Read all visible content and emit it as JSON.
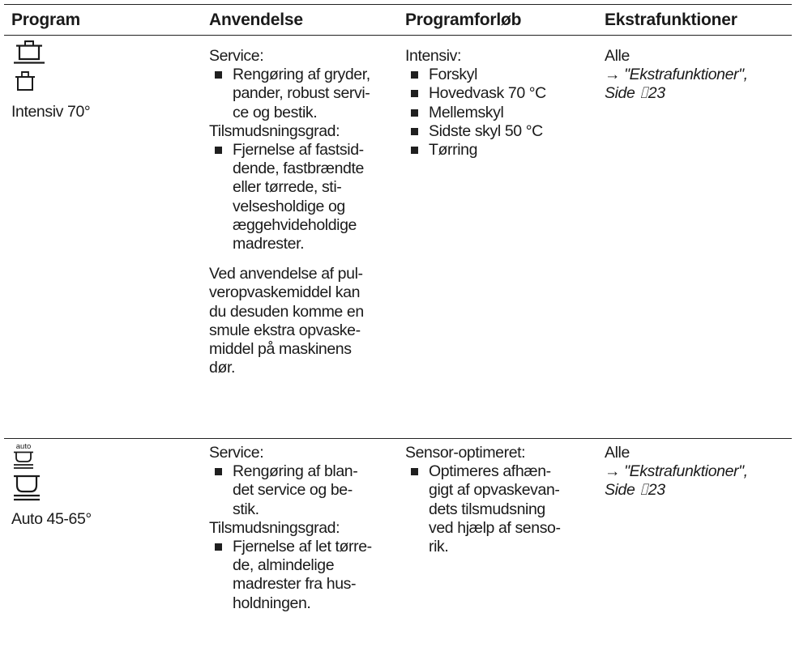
{
  "table": {
    "headers": {
      "program": "Program",
      "anvendelse": "Anvendelse",
      "programforlob": "Programforløb",
      "ekstra": "Ekstrafunktioner"
    },
    "rows": [
      {
        "program_name": "Intensiv 70°",
        "icons": [
          "pot-large-icon",
          "pot-small-icon"
        ],
        "anvendelse": {
          "heading1": "Service:",
          "bullet1": [
            "Rengøring af gryder,",
            "pander, robust servi-",
            "ce og bestik."
          ],
          "heading2": "Tilsmudsningsgrad:",
          "bullet2": [
            "Fjernelse af fastsid-",
            "dende, fastbrændte",
            "eller tørrede, sti-",
            "velsesholdige og",
            "æggehvideholdige",
            "madrester."
          ],
          "note": [
            "Ved anvendelse af pul-",
            "veropvaskemiddel kan",
            "du desuden komme en",
            "smule ekstra opvaske-",
            "middel på maskinens",
            "dør."
          ]
        },
        "programforlob": {
          "heading": "Intensiv:",
          "bullets": [
            "Forskyl",
            "Hovedvask 70 °C",
            "Mellemskyl",
            "Sidste skyl 50 °C",
            "Tørring"
          ]
        },
        "ekstra": {
          "line1": "Alle",
          "link1": "→ \"Ekstrafunktioner\",",
          "link2": "Side ⌷23"
        }
      },
      {
        "program_name": "Auto 45-65°",
        "icons": [
          "auto-bowl-icon",
          "bowl-icon"
        ],
        "auto_label": "auto",
        "anvendelse": {
          "heading1": "Service:",
          "bullet1": [
            "Rengøring af blan-",
            "det service og be-",
            "stik."
          ],
          "heading2": "Tilsmudsningsgrad:",
          "bullet2": [
            "Fjernelse af let tørre-",
            "de, almindelige",
            "madrester fra hus-",
            "holdningen."
          ]
        },
        "programforlob": {
          "heading": "Sensor-optimeret:",
          "bullets": [
            [
              "Optimeres afhæn-",
              "gigt af opvaskevan-",
              "dets tilsmudsning",
              "ved hjælp af senso-",
              "rik."
            ]
          ]
        },
        "ekstra": {
          "line1": "Alle",
          "link1": "→ \"Ekstrafunktioner\",",
          "link2": "Side ⌷23"
        }
      }
    ]
  }
}
